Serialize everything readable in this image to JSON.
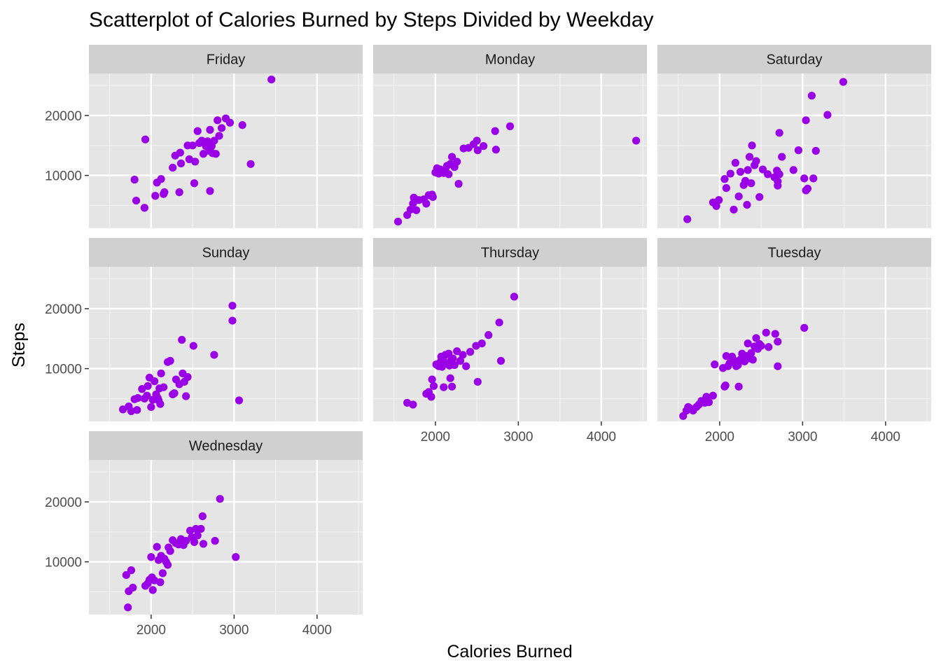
{
  "colors": {
    "panel_background": "#e5e5e5",
    "strip_background": "#d0d0d0",
    "grid_major": "#ffffff",
    "grid_minor": "#f2f2f2",
    "point": "#9a00e6",
    "tick_text": "#4d4d4d"
  },
  "chart_data": {
    "type": "scatter",
    "title": "Scatterplot of Calories Burned by Steps Divided by Weekday",
    "xlabel": "Calories Burned",
    "ylabel": "Steps",
    "xlim": [
      1250,
      4550
    ],
    "ylim": [
      1200,
      27000
    ],
    "x_ticks": [
      2000,
      3000,
      4000
    ],
    "y_ticks": [
      10000,
      20000
    ],
    "grid": true,
    "facet_by": "weekday",
    "panels": [
      {
        "name": "Friday",
        "points": [
          [
            1800,
            9300
          ],
          [
            1820,
            5800
          ],
          [
            1920,
            4600
          ],
          [
            1930,
            16000
          ],
          [
            2050,
            6600
          ],
          [
            2070,
            8800
          ],
          [
            2120,
            9400
          ],
          [
            2150,
            6900
          ],
          [
            2160,
            7200
          ],
          [
            2260,
            11300
          ],
          [
            2290,
            13300
          ],
          [
            2340,
            7200
          ],
          [
            2350,
            13800
          ],
          [
            2360,
            12000
          ],
          [
            2440,
            15000
          ],
          [
            2460,
            12700
          ],
          [
            2500,
            15000
          ],
          [
            2520,
            8700
          ],
          [
            2530,
            12300
          ],
          [
            2560,
            17400
          ],
          [
            2580,
            15400
          ],
          [
            2610,
            15800
          ],
          [
            2630,
            13600
          ],
          [
            2660,
            14900
          ],
          [
            2680,
            15700
          ],
          [
            2700,
            14100
          ],
          [
            2710,
            7400
          ],
          [
            2710,
            17600
          ],
          [
            2730,
            14900
          ],
          [
            2740,
            13700
          ],
          [
            2760,
            15800
          ],
          [
            2780,
            13600
          ],
          [
            2800,
            19200
          ],
          [
            2820,
            16600
          ],
          [
            2850,
            17900
          ],
          [
            2900,
            19500
          ],
          [
            2950,
            18800
          ],
          [
            3100,
            18400
          ],
          [
            3200,
            11900
          ],
          [
            3450,
            26000
          ]
        ]
      },
      {
        "name": "Monday",
        "points": [
          [
            1550,
            2300
          ],
          [
            1660,
            3400
          ],
          [
            1700,
            4300
          ],
          [
            1730,
            5300
          ],
          [
            1740,
            6300
          ],
          [
            1770,
            4200
          ],
          [
            1800,
            5900
          ],
          [
            1860,
            6000
          ],
          [
            1890,
            5300
          ],
          [
            1920,
            6700
          ],
          [
            1960,
            6800
          ],
          [
            1970,
            6400
          ],
          [
            2000,
            10500
          ],
          [
            2020,
            11200
          ],
          [
            2040,
            10300
          ],
          [
            2060,
            11000
          ],
          [
            2080,
            10700
          ],
          [
            2100,
            10400
          ],
          [
            2120,
            10900
          ],
          [
            2140,
            11600
          ],
          [
            2160,
            10200
          ],
          [
            2180,
            11900
          ],
          [
            2200,
            13100
          ],
          [
            2230,
            11400
          ],
          [
            2260,
            12300
          ],
          [
            2280,
            8600
          ],
          [
            2340,
            14500
          ],
          [
            2400,
            14600
          ],
          [
            2460,
            15200
          ],
          [
            2500,
            15800
          ],
          [
            2510,
            14200
          ],
          [
            2580,
            14900
          ],
          [
            2720,
            17400
          ],
          [
            2730,
            14300
          ],
          [
            2900,
            18200
          ],
          [
            4420,
            15800
          ]
        ]
      },
      {
        "name": "Saturday",
        "points": [
          [
            1610,
            2700
          ],
          [
            1920,
            5500
          ],
          [
            1960,
            4900
          ],
          [
            1990,
            5900
          ],
          [
            2060,
            9400
          ],
          [
            2080,
            7900
          ],
          [
            2130,
            10300
          ],
          [
            2170,
            4300
          ],
          [
            2190,
            12100
          ],
          [
            2230,
            6500
          ],
          [
            2250,
            10600
          ],
          [
            2290,
            8400
          ],
          [
            2310,
            9100
          ],
          [
            2330,
            5100
          ],
          [
            2340,
            10900
          ],
          [
            2360,
            13100
          ],
          [
            2380,
            8700
          ],
          [
            2390,
            15000
          ],
          [
            2420,
            11700
          ],
          [
            2440,
            12400
          ],
          [
            2480,
            6400
          ],
          [
            2520,
            11000
          ],
          [
            2580,
            10200
          ],
          [
            2660,
            9700
          ],
          [
            2690,
            10800
          ],
          [
            2700,
            8300
          ],
          [
            2700,
            9000
          ],
          [
            2720,
            10200
          ],
          [
            2720,
            17100
          ],
          [
            2750,
            13100
          ],
          [
            2890,
            10900
          ],
          [
            2950,
            14200
          ],
          [
            3020,
            9500
          ],
          [
            3040,
            7500
          ],
          [
            3060,
            7800
          ],
          [
            3040,
            19200
          ],
          [
            3110,
            23300
          ],
          [
            3130,
            9500
          ],
          [
            3160,
            14100
          ],
          [
            3300,
            20100
          ],
          [
            3490,
            25600
          ]
        ]
      },
      {
        "name": "Sunday",
        "points": [
          [
            1660,
            3200
          ],
          [
            1730,
            3700
          ],
          [
            1760,
            2900
          ],
          [
            1800,
            4900
          ],
          [
            1830,
            3100
          ],
          [
            1840,
            5100
          ],
          [
            1890,
            6600
          ],
          [
            1920,
            5000
          ],
          [
            1950,
            5500
          ],
          [
            1960,
            7100
          ],
          [
            1980,
            8500
          ],
          [
            2000,
            3600
          ],
          [
            2020,
            4800
          ],
          [
            2040,
            7900
          ],
          [
            2060,
            5700
          ],
          [
            2080,
            5100
          ],
          [
            2090,
            4700
          ],
          [
            2100,
            6700
          ],
          [
            2110,
            4100
          ],
          [
            2120,
            9200
          ],
          [
            2150,
            6900
          ],
          [
            2200,
            11100
          ],
          [
            2230,
            11300
          ],
          [
            2260,
            5700
          ],
          [
            2280,
            5900
          ],
          [
            2300,
            8200
          ],
          [
            2340,
            7400
          ],
          [
            2370,
            14800
          ],
          [
            2380,
            9200
          ],
          [
            2400,
            7800
          ],
          [
            2420,
            5400
          ],
          [
            2440,
            8600
          ],
          [
            2510,
            13800
          ],
          [
            2760,
            12300
          ],
          [
            2980,
            20500
          ],
          [
            2980,
            18000
          ],
          [
            3060,
            4700
          ]
        ]
      },
      {
        "name": "Thursday",
        "points": [
          [
            1660,
            4300
          ],
          [
            1730,
            4000
          ],
          [
            1890,
            5800
          ],
          [
            1920,
            6100
          ],
          [
            1950,
            5300
          ],
          [
            1960,
            8200
          ],
          [
            1980,
            7100
          ],
          [
            2010,
            10700
          ],
          [
            2040,
            10400
          ],
          [
            2060,
            11100
          ],
          [
            2070,
            12000
          ],
          [
            2080,
            10300
          ],
          [
            2090,
            11600
          ],
          [
            2100,
            6900
          ],
          [
            2120,
            12300
          ],
          [
            2140,
            10900
          ],
          [
            2160,
            12500
          ],
          [
            2170,
            10500
          ],
          [
            2180,
            8400
          ],
          [
            2190,
            11400
          ],
          [
            2200,
            7000
          ],
          [
            2210,
            11700
          ],
          [
            2230,
            10600
          ],
          [
            2260,
            12900
          ],
          [
            2300,
            11300
          ],
          [
            2330,
            12300
          ],
          [
            2370,
            10400
          ],
          [
            2420,
            12800
          ],
          [
            2490,
            13800
          ],
          [
            2510,
            7800
          ],
          [
            2560,
            14200
          ],
          [
            2640,
            15600
          ],
          [
            2770,
            17700
          ],
          [
            2790,
            11300
          ],
          [
            2950,
            22000
          ]
        ]
      },
      {
        "name": "Tuesday",
        "points": [
          [
            1560,
            2100
          ],
          [
            1600,
            3000
          ],
          [
            1620,
            3600
          ],
          [
            1640,
            3400
          ],
          [
            1680,
            3000
          ],
          [
            1720,
            3600
          ],
          [
            1750,
            4000
          ],
          [
            1780,
            4600
          ],
          [
            1820,
            4300
          ],
          [
            1840,
            5300
          ],
          [
            1870,
            4400
          ],
          [
            1920,
            5500
          ],
          [
            1940,
            10700
          ],
          [
            2040,
            10100
          ],
          [
            2060,
            7000
          ],
          [
            2070,
            7200
          ],
          [
            2080,
            12100
          ],
          [
            2100,
            10400
          ],
          [
            2120,
            10900
          ],
          [
            2150,
            12000
          ],
          [
            2180,
            11300
          ],
          [
            2200,
            10400
          ],
          [
            2220,
            10600
          ],
          [
            2230,
            7000
          ],
          [
            2250,
            11500
          ],
          [
            2270,
            12500
          ],
          [
            2300,
            11200
          ],
          [
            2320,
            12100
          ],
          [
            2340,
            14200
          ],
          [
            2360,
            11700
          ],
          [
            2380,
            12600
          ],
          [
            2400,
            11500
          ],
          [
            2420,
            13700
          ],
          [
            2440,
            15100
          ],
          [
            2460,
            13300
          ],
          [
            2480,
            14100
          ],
          [
            2500,
            13800
          ],
          [
            2560,
            16000
          ],
          [
            2590,
            13600
          ],
          [
            2670,
            15800
          ],
          [
            2700,
            14500
          ],
          [
            2700,
            10400
          ],
          [
            3020,
            16800
          ]
        ]
      },
      {
        "name": "Wednesday",
        "points": [
          [
            1700,
            7800
          ],
          [
            1720,
            2400
          ],
          [
            1730,
            5100
          ],
          [
            1760,
            8600
          ],
          [
            1780,
            5700
          ],
          [
            1930,
            6000
          ],
          [
            1960,
            6400
          ],
          [
            1980,
            7000
          ],
          [
            2000,
            10800
          ],
          [
            2010,
            7400
          ],
          [
            2020,
            5300
          ],
          [
            2040,
            6900
          ],
          [
            2070,
            12500
          ],
          [
            2090,
            10300
          ],
          [
            2110,
            6600
          ],
          [
            2120,
            11000
          ],
          [
            2140,
            8100
          ],
          [
            2160,
            10500
          ],
          [
            2180,
            10000
          ],
          [
            2200,
            9500
          ],
          [
            2210,
            12400
          ],
          [
            2230,
            11800
          ],
          [
            2260,
            13600
          ],
          [
            2300,
            13100
          ],
          [
            2330,
            12900
          ],
          [
            2360,
            13800
          ],
          [
            2390,
            12800
          ],
          [
            2420,
            13500
          ],
          [
            2470,
            15200
          ],
          [
            2490,
            14100
          ],
          [
            2520,
            13300
          ],
          [
            2540,
            15500
          ],
          [
            2560,
            14400
          ],
          [
            2600,
            15500
          ],
          [
            2620,
            17600
          ],
          [
            2630,
            13000
          ],
          [
            2770,
            13500
          ],
          [
            2830,
            20500
          ],
          [
            3020,
            10800
          ]
        ]
      }
    ]
  }
}
